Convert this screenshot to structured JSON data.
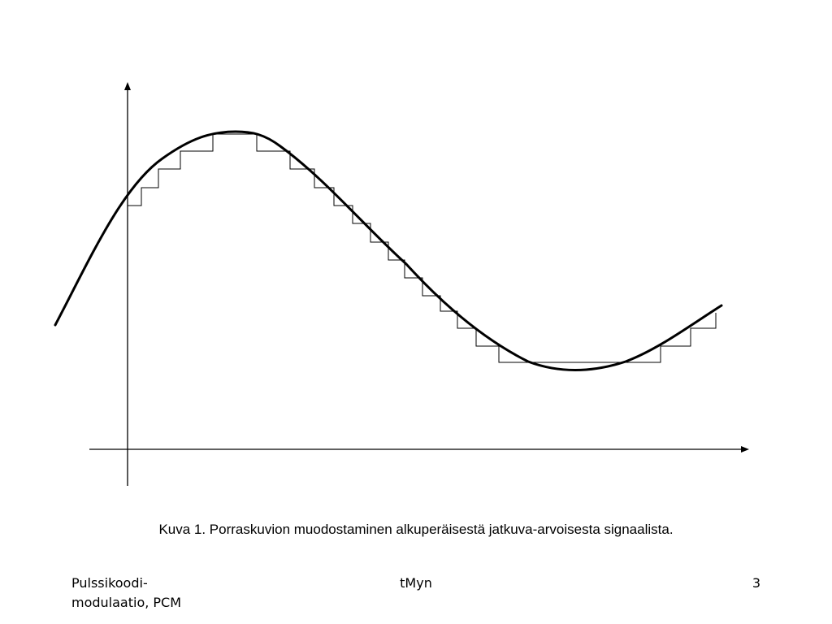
{
  "caption": "Kuva 1. Porraskuvion muodostaminen alkuperäisestä jatkuva-arvoisesta signaalista.",
  "footer": {
    "left_line1": "Pulssikoodi-",
    "left_line2": "modulaatio, PCM",
    "center": "tMyn",
    "page_number": "3"
  },
  "colors": {
    "signal": "#000000",
    "staircase": "#000000",
    "axes": "#000000"
  }
}
